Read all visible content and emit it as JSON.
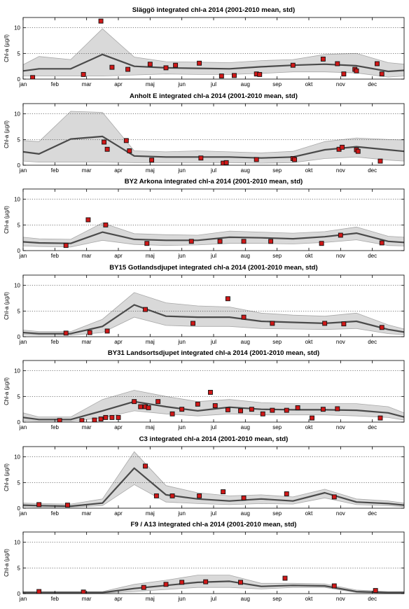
{
  "figure": {
    "ylabel": "Chl-a (µg/l)"
  },
  "chart_data": [
    {
      "type": "line",
      "title": "Släggö integrated chl-a 2014 (2001-2010 mean, std)",
      "ylabel": "Chl-a (µg/l)",
      "xlim": [
        0,
        12
      ],
      "ylim": [
        0,
        12
      ],
      "xticks": [
        "jan",
        "feb",
        "mar",
        "apr",
        "maj",
        "jun",
        "jul",
        "aug",
        "sep",
        "okt",
        "nov",
        "dec"
      ],
      "yticks": [
        0,
        5,
        10
      ],
      "grid": "dotted horizontal",
      "mean": {
        "x": [
          0,
          0.5,
          1.5,
          2.5,
          3.5,
          4.5,
          5.5,
          6.5,
          7.5,
          8.5,
          9.5,
          10.5,
          11.5,
          12
        ],
        "y": [
          1.6,
          2.0,
          2.0,
          4.8,
          2.5,
          2.2,
          2.1,
          2.0,
          2.4,
          2.7,
          2.9,
          2.6,
          1.5,
          1.7
        ]
      },
      "std_upper": [
        2.8,
        4.4,
        3.8,
        9.8,
        4.3,
        3.4,
        3.3,
        3.2,
        3.6,
        3.8,
        4.8,
        5.0,
        3.2,
        2.9
      ],
      "std_lower": [
        0.6,
        0.6,
        0.6,
        0.6,
        0.8,
        1.0,
        0.9,
        0.9,
        1.1,
        1.4,
        1.4,
        1.2,
        0.4,
        0.6
      ],
      "observations": {
        "x": [
          0.3,
          1.9,
          2.45,
          2.8,
          3.3,
          4.0,
          4.5,
          4.8,
          5.55,
          6.25,
          6.65,
          7.35,
          7.45,
          8.5,
          9.45,
          9.9,
          10.1,
          10.45,
          10.5,
          11.15,
          11.3
        ],
        "y": [
          0.3,
          0.9,
          11.3,
          2.3,
          1.9,
          2.9,
          2.2,
          2.7,
          3.1,
          0.6,
          0.7,
          1.0,
          0.9,
          2.7,
          3.9,
          3.0,
          1.0,
          1.9,
          1.6,
          3.0,
          1.0
        ]
      }
    },
    {
      "type": "line",
      "title": "Anholt E integrated chl-a 2014 (2001-2010 mean, std)",
      "ylabel": "Chl-a (µg/l)",
      "xlim": [
        0,
        12
      ],
      "ylim": [
        0,
        12
      ],
      "xticks": [
        "jan",
        "feb",
        "mar",
        "apr",
        "maj",
        "jun",
        "jul",
        "aug",
        "sep",
        "okt",
        "nov",
        "dec"
      ],
      "yticks": [
        0,
        5,
        10
      ],
      "grid": "dotted horizontal",
      "mean": {
        "x": [
          0,
          0.5,
          1.5,
          2.5,
          3.5,
          4.5,
          5.5,
          6.5,
          7.5,
          8.5,
          9.5,
          10.5,
          11.5,
          12
        ],
        "y": [
          2.6,
          2.2,
          5.1,
          5.6,
          1.8,
          1.6,
          1.6,
          1.6,
          1.4,
          1.6,
          3.0,
          3.6,
          3.0,
          2.7
        ]
      },
      "std_upper": [
        4.8,
        4.6,
        10.5,
        10.3,
        2.8,
        2.6,
        2.8,
        2.6,
        2.4,
        2.7,
        4.6,
        5.3,
        5.0,
        4.9
      ],
      "std_lower": [
        0.8,
        0.6,
        0.6,
        0.6,
        0.5,
        0.5,
        0.5,
        0.5,
        0.4,
        0.5,
        1.3,
        1.6,
        1.0,
        0.8
      ],
      "observations": {
        "x": [
          2.55,
          2.65,
          3.25,
          3.35,
          4.05,
          5.6,
          6.3,
          6.4,
          7.35,
          8.5,
          8.55,
          9.95,
          10.05,
          10.5,
          10.55,
          11.25
        ],
        "y": [
          4.5,
          3.1,
          4.8,
          2.8,
          1.0,
          1.4,
          0.4,
          0.5,
          1.1,
          1.3,
          1.1,
          3.1,
          3.5,
          3.0,
          2.7,
          0.8
        ]
      }
    },
    {
      "type": "line",
      "title": "BY2 Arkona integrated chl-a 2014 (2001-2010 mean, std)",
      "ylabel": "Chl-a (µg/l)",
      "xlim": [
        0,
        12
      ],
      "ylim": [
        0,
        12
      ],
      "xticks": [
        "jan",
        "feb",
        "mar",
        "apr",
        "maj",
        "jun",
        "jul",
        "aug",
        "sep",
        "okt",
        "nov",
        "dec"
      ],
      "yticks": [
        0,
        5,
        10
      ],
      "grid": "dotted horizontal",
      "mean": {
        "x": [
          0,
          0.5,
          1.5,
          2.5,
          3.5,
          4.5,
          5.5,
          6.5,
          7.5,
          8.5,
          9.5,
          10.5,
          11.5,
          12
        ],
        "y": [
          1.7,
          1.5,
          1.4,
          3.6,
          2.2,
          2.0,
          2.0,
          2.6,
          2.5,
          2.3,
          2.7,
          3.4,
          1.8,
          1.6
        ]
      },
      "std_upper": [
        2.6,
        2.3,
        2.2,
        5.4,
        3.3,
        3.1,
        3.0,
        3.8,
        3.6,
        3.4,
        3.7,
        4.6,
        2.8,
        2.6
      ],
      "std_lower": [
        0.9,
        0.8,
        0.7,
        2.0,
        1.2,
        1.0,
        1.1,
        1.4,
        1.4,
        1.3,
        1.6,
        2.1,
        1.0,
        0.9
      ],
      "observations": {
        "x": [
          1.35,
          2.05,
          2.6,
          3.9,
          5.3,
          6.2,
          6.95,
          7.8,
          9.4,
          10.0,
          11.3
        ],
        "y": [
          1.0,
          6.0,
          5.0,
          1.4,
          1.8,
          1.8,
          1.8,
          1.8,
          1.4,
          3.0,
          1.5
        ]
      }
    },
    {
      "type": "line",
      "title": "BY15 Gotlandsdjupet integrated chl-a 2014 (2001-2010 mean, std)",
      "ylabel": "Chl-a (µg/l)",
      "xlim": [
        0,
        12
      ],
      "ylim": [
        0,
        12
      ],
      "xticks": [
        "jan",
        "feb",
        "mar",
        "apr",
        "maj",
        "jun",
        "jul",
        "aug",
        "sep",
        "okt",
        "nov",
        "dec"
      ],
      "yticks": [
        0,
        5,
        10
      ],
      "grid": "dotted horizontal",
      "mean": {
        "x": [
          0,
          0.5,
          1.5,
          2.5,
          3.5,
          4.5,
          5.5,
          6.5,
          7.5,
          8.5,
          9.5,
          10.5,
          11.5,
          12
        ],
        "y": [
          0.8,
          0.6,
          0.6,
          2.0,
          6.2,
          4.0,
          3.8,
          3.8,
          3.0,
          2.8,
          2.6,
          3.0,
          1.4,
          0.9
        ]
      },
      "std_upper": [
        1.3,
        1.0,
        1.0,
        3.4,
        8.6,
        6.6,
        6.0,
        5.8,
        4.6,
        4.2,
        4.0,
        4.6,
        2.3,
        1.5
      ],
      "std_lower": [
        0.4,
        0.3,
        0.3,
        0.8,
        3.8,
        2.2,
        2.0,
        2.0,
        1.6,
        1.5,
        1.4,
        1.6,
        0.6,
        0.4
      ],
      "observations": {
        "x": [
          1.35,
          2.1,
          2.65,
          3.85,
          5.35,
          6.45,
          6.95,
          7.85,
          9.5,
          10.1,
          11.3
        ],
        "y": [
          0.7,
          0.8,
          1.1,
          5.3,
          2.6,
          7.4,
          3.8,
          2.6,
          2.6,
          2.5,
          1.8
        ]
      }
    },
    {
      "type": "line",
      "title": "BY31 Landsortsdjupet integrated chl-a 2014 (2001-2010 mean, std)",
      "ylabel": "Chl-a (µg/l)",
      "xlim": [
        0,
        12
      ],
      "ylim": [
        0,
        12
      ],
      "xticks": [
        "jan",
        "feb",
        "mar",
        "apr",
        "maj",
        "jun",
        "jul",
        "aug",
        "sep",
        "okt",
        "nov",
        "dec"
      ],
      "yticks": [
        0,
        5,
        10
      ],
      "grid": "dotted horizontal",
      "mean": {
        "x": [
          0,
          0.5,
          1.5,
          2.5,
          3.5,
          4.5,
          5.5,
          6.5,
          7.5,
          8.5,
          9.5,
          10.5,
          11.5,
          12
        ],
        "y": [
          0.9,
          0.5,
          0.5,
          2.2,
          4.0,
          3.0,
          2.2,
          2.9,
          2.5,
          2.4,
          2.4,
          2.3,
          1.8,
          1.0
        ]
      },
      "std_upper": [
        1.8,
        1.0,
        1.0,
        4.4,
        6.2,
        5.0,
        4.0,
        4.4,
        3.8,
        3.6,
        3.6,
        3.6,
        3.0,
        1.8
      ],
      "std_lower": [
        0.3,
        0.2,
        0.2,
        0.8,
        2.2,
        1.6,
        1.2,
        1.6,
        1.4,
        1.4,
        1.4,
        1.2,
        0.9,
        0.4
      ],
      "observations": {
        "x": [
          1.15,
          1.85,
          2.25,
          2.45,
          2.6,
          2.8,
          3.0,
          3.5,
          3.7,
          3.85,
          3.95,
          4.25,
          4.7,
          5.0,
          5.5,
          5.9,
          6.05,
          6.45,
          6.85,
          7.2,
          7.55,
          7.85,
          8.3,
          8.65,
          9.1,
          9.45,
          9.9,
          11.25
        ],
        "y": [
          0.3,
          0.3,
          0.4,
          0.6,
          0.9,
          0.9,
          0.9,
          4.0,
          3.0,
          3.0,
          2.8,
          4.0,
          1.6,
          2.5,
          3.5,
          5.8,
          3.2,
          2.4,
          2.2,
          2.5,
          1.6,
          2.3,
          2.3,
          2.8,
          0.8,
          2.5,
          2.6,
          0.8
        ]
      }
    },
    {
      "type": "line",
      "title": "C3 integrated chl-a 2014 (2001-2010 mean, std)",
      "ylabel": "Chl-a (µg/l)",
      "xlim": [
        0,
        12
      ],
      "ylim": [
        0,
        12
      ],
      "xticks": [
        "jan",
        "feb",
        "mar",
        "apr",
        "maj",
        "jun",
        "jul",
        "aug",
        "sep",
        "okt",
        "nov",
        "dec"
      ],
      "yticks": [
        0,
        5,
        10
      ],
      "grid": "dotted horizontal",
      "mean": {
        "x": [
          0,
          0.5,
          1.5,
          2.5,
          3.5,
          4.5,
          5.5,
          6.5,
          7.5,
          8.5,
          9.5,
          10.5,
          11.5,
          12
        ],
        "y": [
          0.6,
          0.5,
          0.4,
          1.0,
          7.8,
          2.6,
          1.8,
          1.4,
          1.8,
          1.4,
          3.0,
          1.2,
          0.9,
          0.6
        ]
      },
      "std_upper": [
        1.0,
        0.9,
        0.8,
        1.8,
        11.0,
        4.4,
        3.0,
        2.4,
        2.6,
        2.2,
        3.7,
        1.8,
        1.4,
        1.0
      ],
      "std_lower": [
        0.3,
        0.2,
        0.2,
        0.5,
        4.6,
        1.2,
        0.9,
        0.7,
        0.9,
        0.8,
        2.0,
        0.7,
        0.5,
        0.3
      ],
      "observations": {
        "x": [
          0.5,
          1.4,
          3.85,
          4.2,
          4.7,
          5.55,
          6.3,
          6.95,
          8.3,
          9.8
        ],
        "y": [
          0.7,
          0.6,
          8.2,
          2.4,
          2.4,
          2.4,
          3.2,
          2.0,
          2.8,
          2.2
        ]
      }
    },
    {
      "type": "line",
      "title": "F9 / A13 integrated chl-a 2014 (2001-2010 mean, std)",
      "ylabel": "Chl-a (µg/l)",
      "xlim": [
        0,
        12
      ],
      "ylim": [
        0,
        12
      ],
      "xticks": [
        "jan",
        "feb",
        "mar",
        "apr",
        "maj",
        "jun",
        "jul",
        "aug",
        "sep",
        "okt",
        "nov",
        "dec"
      ],
      "yticks": [
        0,
        5,
        10
      ],
      "grid": "dotted horizontal",
      "mean": {
        "x": [
          0,
          0.5,
          1.5,
          2.5,
          3.5,
          4.5,
          5.5,
          6.5,
          7.5,
          8.5,
          9.5,
          10.5,
          11.5,
          12
        ],
        "y": [
          0.2,
          0.2,
          0.2,
          0.2,
          1.0,
          1.6,
          2.2,
          2.4,
          1.4,
          1.6,
          1.5,
          0.4,
          0.2,
          0.2
        ]
      },
      "std_upper": [
        0.4,
        0.4,
        0.4,
        0.4,
        1.8,
        2.6,
        3.6,
        3.6,
        2.0,
        2.0,
        1.9,
        0.7,
        0.4,
        0.4
      ],
      "std_lower": [
        0.1,
        0.1,
        0.1,
        0.1,
        0.4,
        0.8,
        1.2,
        1.2,
        0.9,
        1.2,
        1.2,
        0.2,
        0.1,
        0.1
      ],
      "observations": {
        "x": [
          0.5,
          1.9,
          3.8,
          4.5,
          5.0,
          5.75,
          6.85,
          8.25,
          9.8,
          11.1
        ],
        "y": [
          0.4,
          0.3,
          1.2,
          1.8,
          2.2,
          2.3,
          2.2,
          3.0,
          1.5,
          0.6
        ]
      }
    }
  ]
}
